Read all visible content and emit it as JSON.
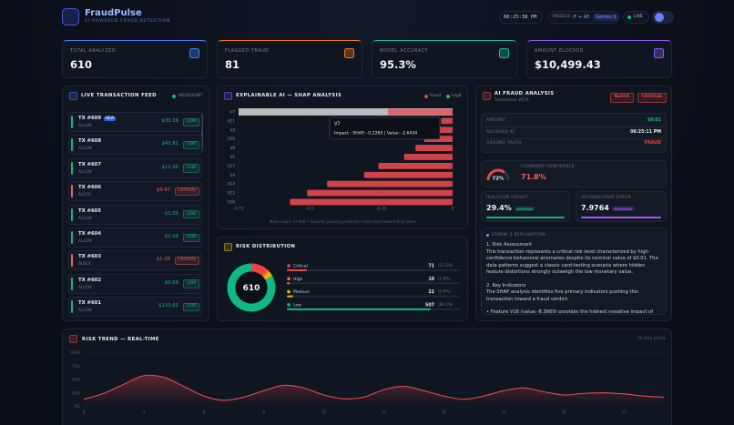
{
  "header": {
    "title": "FraudPulse",
    "subtitle": "AI-POWERED FRAUD DETECTION",
    "time": "06:25:38 PM",
    "models_label": "MODELS",
    "models": [
      "IF + AE",
      "Gemini 3"
    ],
    "live": "LIVE"
  },
  "kpis": [
    {
      "label": "TOTAL ANALYZED",
      "value": 610,
      "color": "#3b82f6"
    },
    {
      "label": "FLAGGED FRAUD",
      "value": 81,
      "color": "#f97316"
    },
    {
      "label": "MODEL ACCURACY",
      "value": "95.3%",
      "color": "#14b8a6"
    },
    {
      "label": "AMOUNT BLOCKED",
      "value": "$10,499.43",
      "color": "#8b5cf6"
    }
  ],
  "feed": {
    "title": "LIVE TRANSACTION FEED",
    "source": "WEBSOCKET",
    "rows": [
      {
        "id": "TX #609",
        "badge": "NEW",
        "status": "ALLOW",
        "amount": "$30.16",
        "risk": "LOW",
        "color": "#10b981"
      },
      {
        "id": "TX #608",
        "status": "ALLOW",
        "amount": "$42.81",
        "risk": "LOW",
        "color": "#10b981"
      },
      {
        "id": "TX #607",
        "status": "ALLOW",
        "amount": "$11.90",
        "risk": "LOW",
        "color": "#10b981"
      },
      {
        "id": "TX #606",
        "status": "BLOCK",
        "amount": "$9.97",
        "risk": "CRITICAL",
        "color": "#f0605a"
      },
      {
        "id": "TX #605",
        "status": "ALLOW",
        "amount": "$1.00",
        "risk": "LOW",
        "color": "#10b981"
      },
      {
        "id": "TX #604",
        "status": "ALLOW",
        "amount": "$1.00",
        "risk": "LOW",
        "color": "#10b981"
      },
      {
        "id": "TX #603",
        "status": "BLOCK",
        "amount": "$1.00",
        "risk": "CRITICAL",
        "color": "#f0605a"
      },
      {
        "id": "TX #602",
        "status": "ALLOW",
        "amount": "$0.69",
        "risk": "LOW",
        "color": "#10b981"
      },
      {
        "id": "TX #601",
        "status": "ALLOW",
        "amount": "$133.60",
        "risk": "LOW",
        "color": "#10b981"
      }
    ]
  },
  "chart_data": [
    {
      "type": "bar",
      "title": "EXPLAINABLE AI — SHAP ANALYSIS",
      "legend": [
        {
          "name": "Fraud",
          "color": "#e5484d"
        },
        {
          "name": "Legit",
          "color": "#22c55e"
        }
      ],
      "categories": [
        "V7",
        "V11",
        "V3",
        "V10",
        "V9",
        "V1",
        "V17",
        "V4",
        "V14",
        "V12",
        "V16"
      ],
      "values": [
        -0.2265,
        -0.04,
        -0.05,
        -0.1,
        -0.13,
        -0.17,
        -0.26,
        -0.31,
        -0.44,
        -0.51,
        -0.57
      ],
      "color": "#e5484d",
      "xlim": [
        -0.75,
        0
      ],
      "xticks": [
        -0.75,
        -0.5,
        -0.25,
        0
      ],
      "tooltip": {
        "title": "V7",
        "text": "Impact : SHAP: -0.2265 | Value: -2.6434"
      },
      "caption": "Mean value: 37.000 • Features pushing prediction from mean toward final score"
    },
    {
      "type": "pie",
      "title": "RISK DISTRIBUTION",
      "center_label": 610,
      "categories": [
        "Critical",
        "High",
        "Medium",
        "Low"
      ],
      "values": [
        71,
        10,
        22,
        507
      ],
      "percent_labels": [
        "(11.6%)",
        "(1.6%)",
        "(3.6%)",
        "(83.1%)"
      ],
      "colors": [
        "#ef4444",
        "#f97316",
        "#eab308",
        "#10b981"
      ]
    },
    {
      "type": "line",
      "title": "RISK TREND — REAL-TIME",
      "note": "30 data points",
      "color": "#e5484d",
      "x": [
        0,
        1,
        2,
        3,
        4,
        5,
        6,
        7,
        8,
        9,
        10,
        11,
        12,
        13,
        14,
        15,
        16,
        17,
        18,
        19,
        20,
        21,
        22,
        23,
        24,
        25,
        26,
        27,
        28,
        29
      ],
      "values": [
        14,
        25,
        42,
        58,
        55,
        38,
        20,
        12,
        18,
        30,
        40,
        35,
        22,
        15,
        18,
        32,
        38,
        30,
        20,
        14,
        20,
        30,
        35,
        28,
        22,
        25,
        26,
        24,
        20,
        18
      ],
      "xlim": [
        0,
        29
      ],
      "xticks": [
        0,
        3,
        6,
        9,
        12,
        15,
        18,
        21,
        24,
        27
      ],
      "ylim": [
        0,
        100
      ],
      "yticks": [
        {
          "value": 100,
          "label": "100%"
        },
        {
          "value": 75,
          "label": "75%"
        },
        {
          "value": 50,
          "label": "50%"
        },
        {
          "value": 25,
          "label": "25%"
        },
        {
          "value": 0,
          "label": "0%"
        }
      ],
      "grid": true
    }
  ],
  "analysis": {
    "title": "AI FRAUD ANALYSIS",
    "subtitle": "Transaction #574",
    "tags": [
      {
        "text": "BLOCK",
        "color": "#ef4444"
      },
      {
        "text": "CRITICAL",
        "color": "#ef4444"
      }
    ],
    "rows": [
      {
        "label": "AMOUNT",
        "value": "$0.01",
        "color": "#10b981"
      },
      {
        "label": "RECEIVED AT",
        "value": "06:25:11 PM",
        "color": "#e6edf3"
      },
      {
        "label": "GROUND TRUTH",
        "value": "FRAUD",
        "color": "#ef4444"
      }
    ],
    "gauge": {
      "value": 72,
      "label": "72%"
    },
    "confidence_label": "COMBINED CONFIDENCE",
    "confidence": "71.8%",
    "models": [
      {
        "label": "ISOLATION FOREST",
        "value": "29.4%",
        "tag": "NORMAL",
        "color": "#10b981"
      },
      {
        "label": "AUTOENCODER ERROR",
        "value": "7.9764",
        "tag": "ANOMALY",
        "color": "#a855f7"
      }
    ],
    "explanation": {
      "title": "GEMINI 3 EXPLANATION",
      "paragraphs": [
        "1. Risk Assessment",
        "This transaction represents a critical risk level characterized by high-confidence behavioral anomalies despite its nominal value of $0.01. The data patterns suggest a classic card-testing scenario where hidden feature distortions strongly outweigh the low monetary value.",
        "2. Key Indicators",
        "The SHAP analysis identifies five primary indicators pushing this transaction toward a fraud verdict:",
        "• Feature V16 (value -8.3660) provides the highest negative impact of"
      ]
    }
  }
}
